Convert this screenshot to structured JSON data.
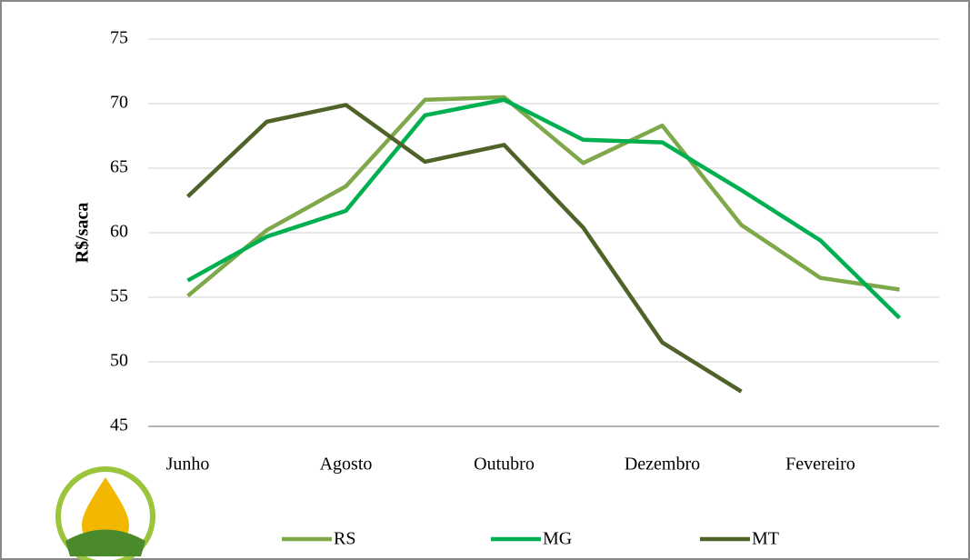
{
  "chart_data": {
    "type": "line",
    "y_label": "R$/saca",
    "categories": [
      "Junho",
      null,
      "Agosto",
      null,
      "Outubro",
      null,
      "Dezembro",
      null,
      "Fevereiro",
      null
    ],
    "series": [
      {
        "name": "RS",
        "color": "#7ea84a",
        "values": [
          55.1,
          60.2,
          63.6,
          70.3,
          70.5,
          65.4,
          68.3,
          60.6,
          56.5,
          55.6
        ]
      },
      {
        "name": "MG",
        "color": "#00b050",
        "values": [
          56.3,
          59.7,
          61.7,
          69.1,
          70.3,
          67.2,
          67.0,
          63.3,
          59.4,
          53.4
        ]
      },
      {
        "name": "MT",
        "color": "#4f6228",
        "values": [
          62.8,
          68.6,
          69.9,
          65.5,
          66.8,
          60.4,
          51.5,
          47.7,
          null,
          null
        ]
      }
    ],
    "ylim": [
      45,
      75
    ],
    "yticks": [
      45,
      50,
      55,
      60,
      65,
      70,
      75
    ],
    "grid": true,
    "legend": "bottom"
  }
}
